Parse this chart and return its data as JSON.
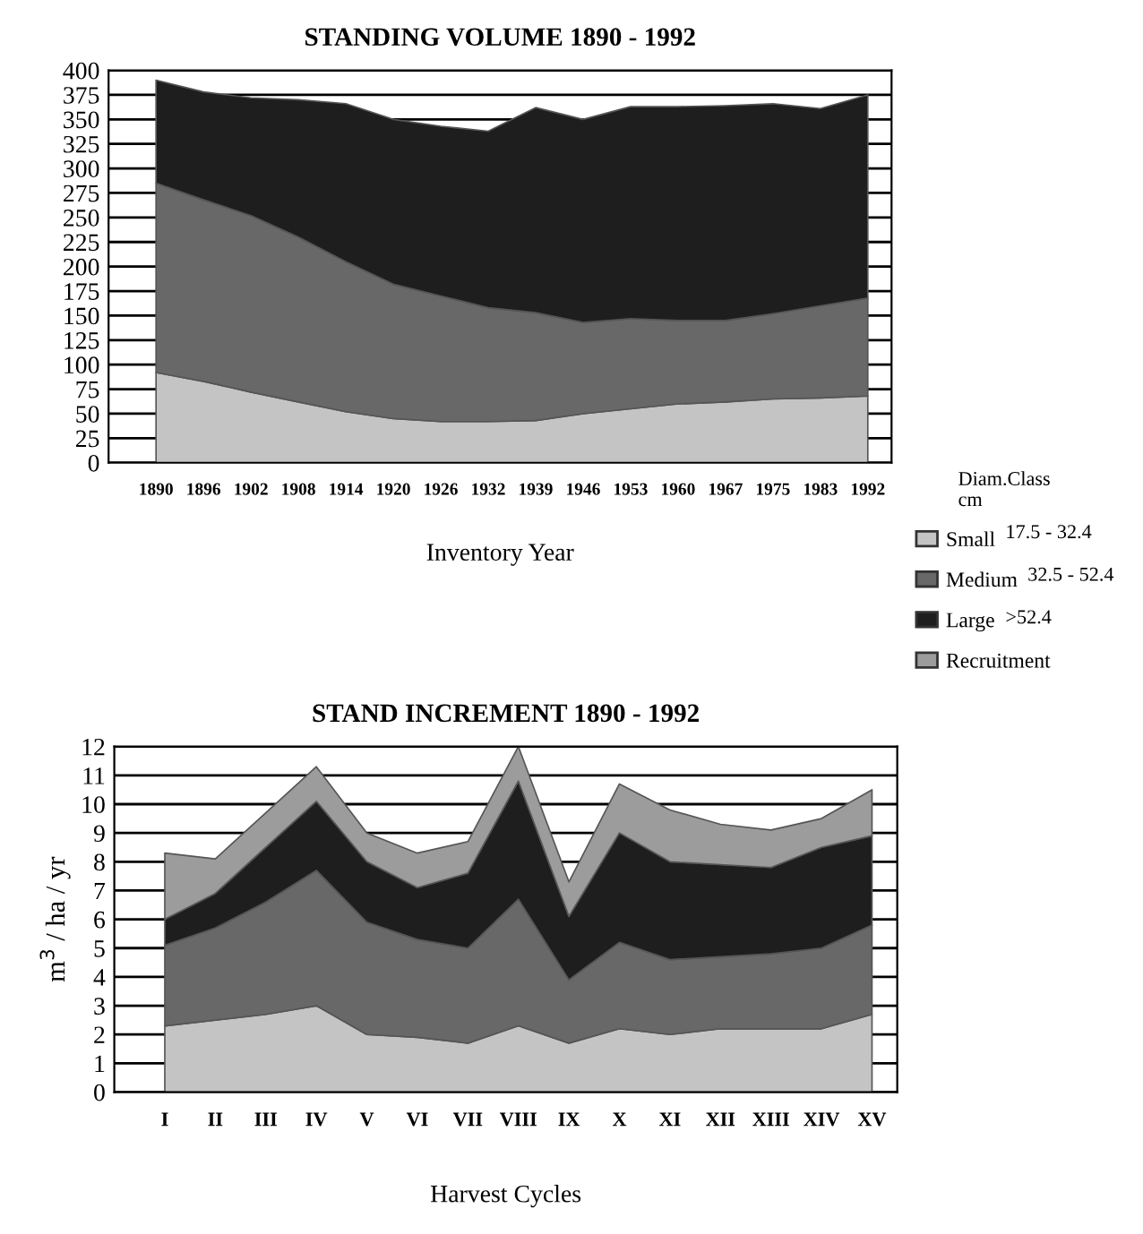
{
  "chart_data": [
    {
      "type": "area",
      "stacked": true,
      "title": "STANDING VOLUME 1890 - 1992",
      "xlabel": "Inventory Year",
      "categories": [
        "1890",
        "1896",
        "1902",
        "1908",
        "1914",
        "1920",
        "1926",
        "1932",
        "1939",
        "1946",
        "1953",
        "1960",
        "1967",
        "1975",
        "1983",
        "1992"
      ],
      "series": [
        {
          "color": "#c4c4c4",
          "values": [
            92,
            83,
            72,
            62,
            52,
            45,
            42,
            42,
            43,
            50,
            55,
            60,
            62,
            65,
            66,
            68
          ]
        },
        {
          "color": "#686868",
          "values": [
            193,
            185,
            180,
            168,
            153,
            137,
            128,
            116,
            110,
            93,
            92,
            85,
            83,
            87,
            94,
            100
          ]
        },
        {
          "color": "#1e1e1e",
          "values": [
            105,
            110,
            120,
            140,
            161,
            168,
            173,
            180,
            209,
            207,
            216,
            218,
            219,
            214,
            201,
            207
          ]
        }
      ],
      "ylim": [
        0,
        400
      ],
      "yticks": [
        0,
        25,
        50,
        75,
        100,
        125,
        150,
        175,
        200,
        225,
        250,
        275,
        300,
        325,
        350,
        375,
        400
      ],
      "grid": "y"
    },
    {
      "type": "area",
      "stacked": true,
      "title": "STAND INCREMENT 1890 - 1992",
      "xlabel": "Harvest Cycles",
      "ylabel": "m$^{3}$ / ha / yr",
      "categories": [
        "I",
        "II",
        "III",
        "IV",
        "V",
        "VI",
        "VII",
        "VIII",
        "IX",
        "X",
        "XI",
        "XII",
        "XIII",
        "XIV",
        "XV"
      ],
      "series": [
        {
          "name": "Small",
          "color": "#c4c4c4",
          "values": [
            2.3,
            2.5,
            2.7,
            3.0,
            2.0,
            1.9,
            1.7,
            2.3,
            1.7,
            2.2,
            2.0,
            2.2,
            2.2,
            2.2,
            2.7
          ]
        },
        {
          "name": "Medium",
          "color": "#686868",
          "values": [
            2.8,
            3.2,
            3.9,
            4.7,
            3.9,
            3.4,
            3.3,
            4.4,
            2.2,
            3.0,
            2.6,
            2.5,
            2.6,
            2.8,
            3.1
          ]
        },
        {
          "name": "Large",
          "color": "#1e1e1e",
          "values": [
            0.9,
            1.2,
            1.9,
            2.4,
            2.1,
            1.8,
            2.6,
            4.1,
            2.2,
            3.8,
            3.4,
            3.2,
            3.0,
            3.5,
            3.1
          ]
        },
        {
          "name": "Recruitment",
          "color": "#9c9c9c",
          "values": [
            2.3,
            1.2,
            1.2,
            1.2,
            1.0,
            1.2,
            1.1,
            1.2,
            1.2,
            1.7,
            1.8,
            1.4,
            1.3,
            1.0,
            1.6
          ]
        }
      ],
      "ylim": [
        0,
        12
      ],
      "yticks": [
        0,
        1,
        2,
        3,
        4,
        5,
        6,
        7,
        8,
        9,
        10,
        11,
        12
      ],
      "grid": "y",
      "legend": "top right",
      "legend_title": "Diam.Class\ncm",
      "annotations": [
        "17.5 - 32.4",
        "32.5 - 52.4",
        ">52.4"
      ]
    }
  ]
}
